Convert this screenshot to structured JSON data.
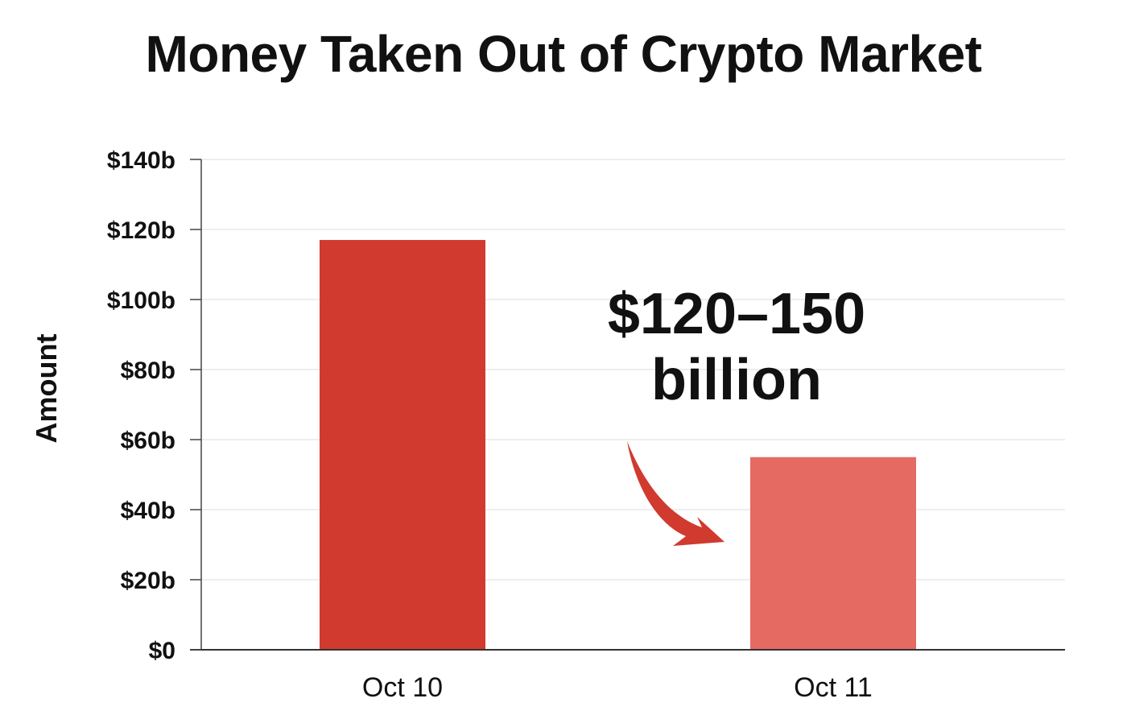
{
  "chart_data": {
    "type": "bar",
    "title": "Money Taken Out of Crypto Market",
    "xlabel": "",
    "ylabel": "Amount",
    "categories": [
      "Oct 10",
      "Oct 11"
    ],
    "values": [
      117,
      55
    ],
    "ylim": [
      0,
      140
    ],
    "yticks": [
      0,
      20,
      40,
      60,
      80,
      100,
      120,
      140
    ],
    "ytick_labels": [
      "$0",
      "$20b",
      "$40b",
      "$60b",
      "$80b",
      "$100b",
      "$120b",
      "$140b"
    ],
    "grid": true,
    "bar_colors": [
      "#d13a2f",
      "#e56a62"
    ],
    "annotation": {
      "lines": [
        "$120–150",
        "billion"
      ],
      "arrow_color": "#d13a2f",
      "arrow_target": "Oct 11"
    }
  }
}
